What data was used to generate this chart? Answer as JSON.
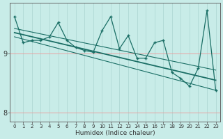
{
  "xlabel": "Humidex (Indice chaleur)",
  "ylabel": "",
  "background_color": "#c8ece8",
  "line_color": "#1a6e65",
  "grid_v_color": "#b0d8d4",
  "grid_h_color": "#e8a0a0",
  "x_values": [
    0,
    1,
    2,
    3,
    4,
    5,
    6,
    7,
    8,
    9,
    10,
    11,
    12,
    13,
    14,
    15,
    16,
    17,
    18,
    19,
    20,
    21,
    22,
    23
  ],
  "y_main": [
    9.62,
    9.18,
    9.22,
    9.22,
    9.28,
    9.52,
    9.22,
    9.1,
    9.05,
    9.02,
    9.38,
    9.62,
    9.08,
    9.3,
    8.92,
    8.92,
    9.18,
    9.22,
    8.68,
    8.58,
    8.45,
    8.75,
    9.72,
    8.38
  ],
  "ylim": [
    7.85,
    9.85
  ],
  "xlim": [
    -0.5,
    23.5
  ],
  "yticks": [
    8,
    9
  ],
  "xticks": [
    0,
    1,
    2,
    3,
    4,
    5,
    6,
    7,
    8,
    9,
    10,
    11,
    12,
    13,
    14,
    15,
    16,
    17,
    18,
    19,
    20,
    21,
    22,
    23
  ],
  "trend_y0": 9.35,
  "trend_y1": 8.55,
  "upper_y0": 9.42,
  "upper_y1": 8.72,
  "lower_y0": 9.28,
  "lower_y1": 8.38
}
